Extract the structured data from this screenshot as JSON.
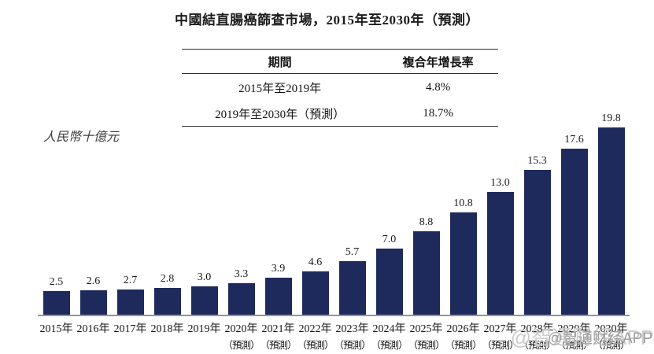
{
  "title": "中國結直腸癌篩查市場，2015年至2030年（預測）",
  "table": {
    "headers": [
      "期間",
      "複合年增長率"
    ],
    "rows": [
      {
        "period": "2015年至2019年",
        "cagr": "4.8%"
      },
      {
        "period": "2019年至2030年（預測）",
        "cagr": "18.7%"
      }
    ]
  },
  "y_axis_label": "人民幣十億元",
  "watermark": {
    "text": "@智通财经APP"
  },
  "colors": {
    "bar": "#1f2a5c",
    "axis": "#90959c",
    "rule": "#2f2f2f",
    "watermark_light": "#cccccc",
    "watermark_dark": "#a0a0a0"
  },
  "chart_data": {
    "type": "bar",
    "title": "中國結直腸癌篩查市場，2015年至2030年（預測）",
    "ylabel": "人民幣十億元",
    "categories": [
      "2015年",
      "2016年",
      "2017年",
      "2018年",
      "2019年",
      "2020年",
      "2021年",
      "2022年",
      "2023年",
      "2024年",
      "2025年",
      "2026年",
      "2027年",
      "2028年",
      "2029年",
      "2030年"
    ],
    "values": [
      2.5,
      2.6,
      2.7,
      2.8,
      3.0,
      3.3,
      3.9,
      4.6,
      5.7,
      7.0,
      8.8,
      10.8,
      13.0,
      15.3,
      17.6,
      19.8
    ],
    "forecast_label": "（預測）",
    "forecast_from_index": 5,
    "ylim": [
      0,
      21
    ],
    "grid": false,
    "legend": "none",
    "bar_color": "#1f2a5c",
    "cagr_2015_2019": "4.8%",
    "cagr_2019_2030": "18.7%"
  }
}
